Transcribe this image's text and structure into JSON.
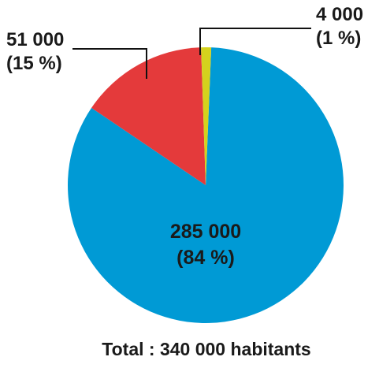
{
  "chart_data": {
    "type": "pie",
    "slices": [
      {
        "value_label": "285 000",
        "percent_label": "(84 %)",
        "value": 285000,
        "percent": 84,
        "color": "#009ad5"
      },
      {
        "value_label": "51 000",
        "percent_label": "(15 %)",
        "value": 51000,
        "percent": 15,
        "color": "#e43a3b"
      },
      {
        "value_label": "4 000",
        "percent_label": "(1 %)",
        "value": 4000,
        "percent": 1,
        "color": "#d4d21d"
      }
    ],
    "total_label": "Total : 340 000 habitants",
    "total": 340000,
    "legend": "none"
  }
}
